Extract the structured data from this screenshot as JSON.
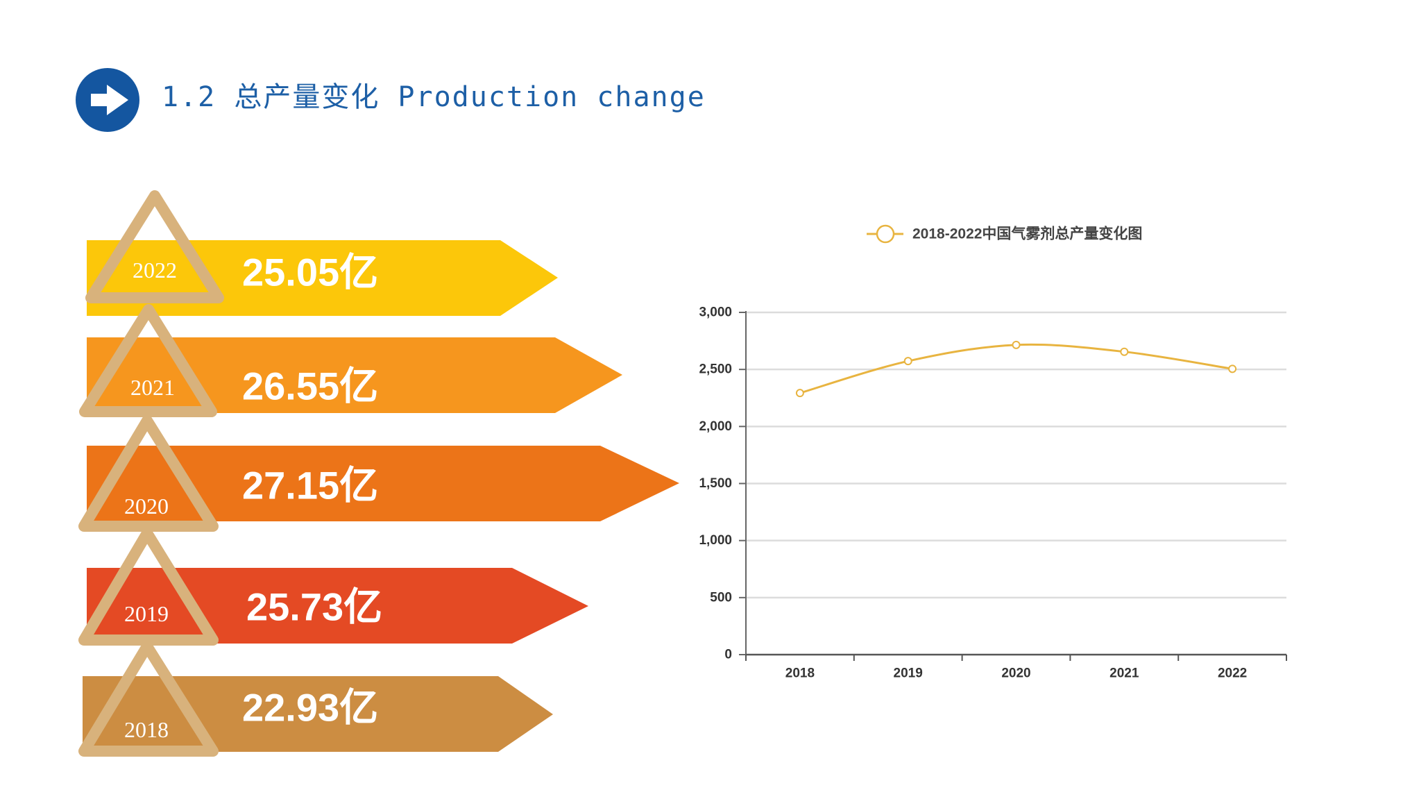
{
  "header": {
    "icon": "arrow-right-icon",
    "badge_color": "#1456a0",
    "title": "1.2 总产量变化 Production change",
    "title_color": "#1d5fa6"
  },
  "timeline": {
    "triangle_color": "#d8b27c",
    "items": [
      {
        "year": "2022",
        "value": "25.05亿",
        "color": "#fcc70a"
      },
      {
        "year": "2021",
        "value": "26.55亿",
        "color": "#f6961e"
      },
      {
        "year": "2020",
        "value": "27.15亿",
        "color": "#ec7418"
      },
      {
        "year": "2019",
        "value": "25.73亿",
        "color": "#e44a24"
      },
      {
        "year": "2018",
        "value": "22.93亿",
        "color": "#cc8d42"
      }
    ]
  },
  "chart_data": {
    "type": "line",
    "categories": [
      "2018",
      "2019",
      "2020",
      "2021",
      "2022"
    ],
    "series": [
      {
        "name": "2018-2022中国气雾剂总产量变化图",
        "values": [
          2293,
          2573,
          2715,
          2655,
          2505
        ],
        "color": "#e8b440"
      }
    ],
    "ylim": [
      0,
      3000
    ],
    "yticks": [
      "0",
      "500",
      "1,000",
      "1,500",
      "2,000",
      "2,500",
      "3,000"
    ],
    "grid": true,
    "smooth": true,
    "legend": "top"
  }
}
